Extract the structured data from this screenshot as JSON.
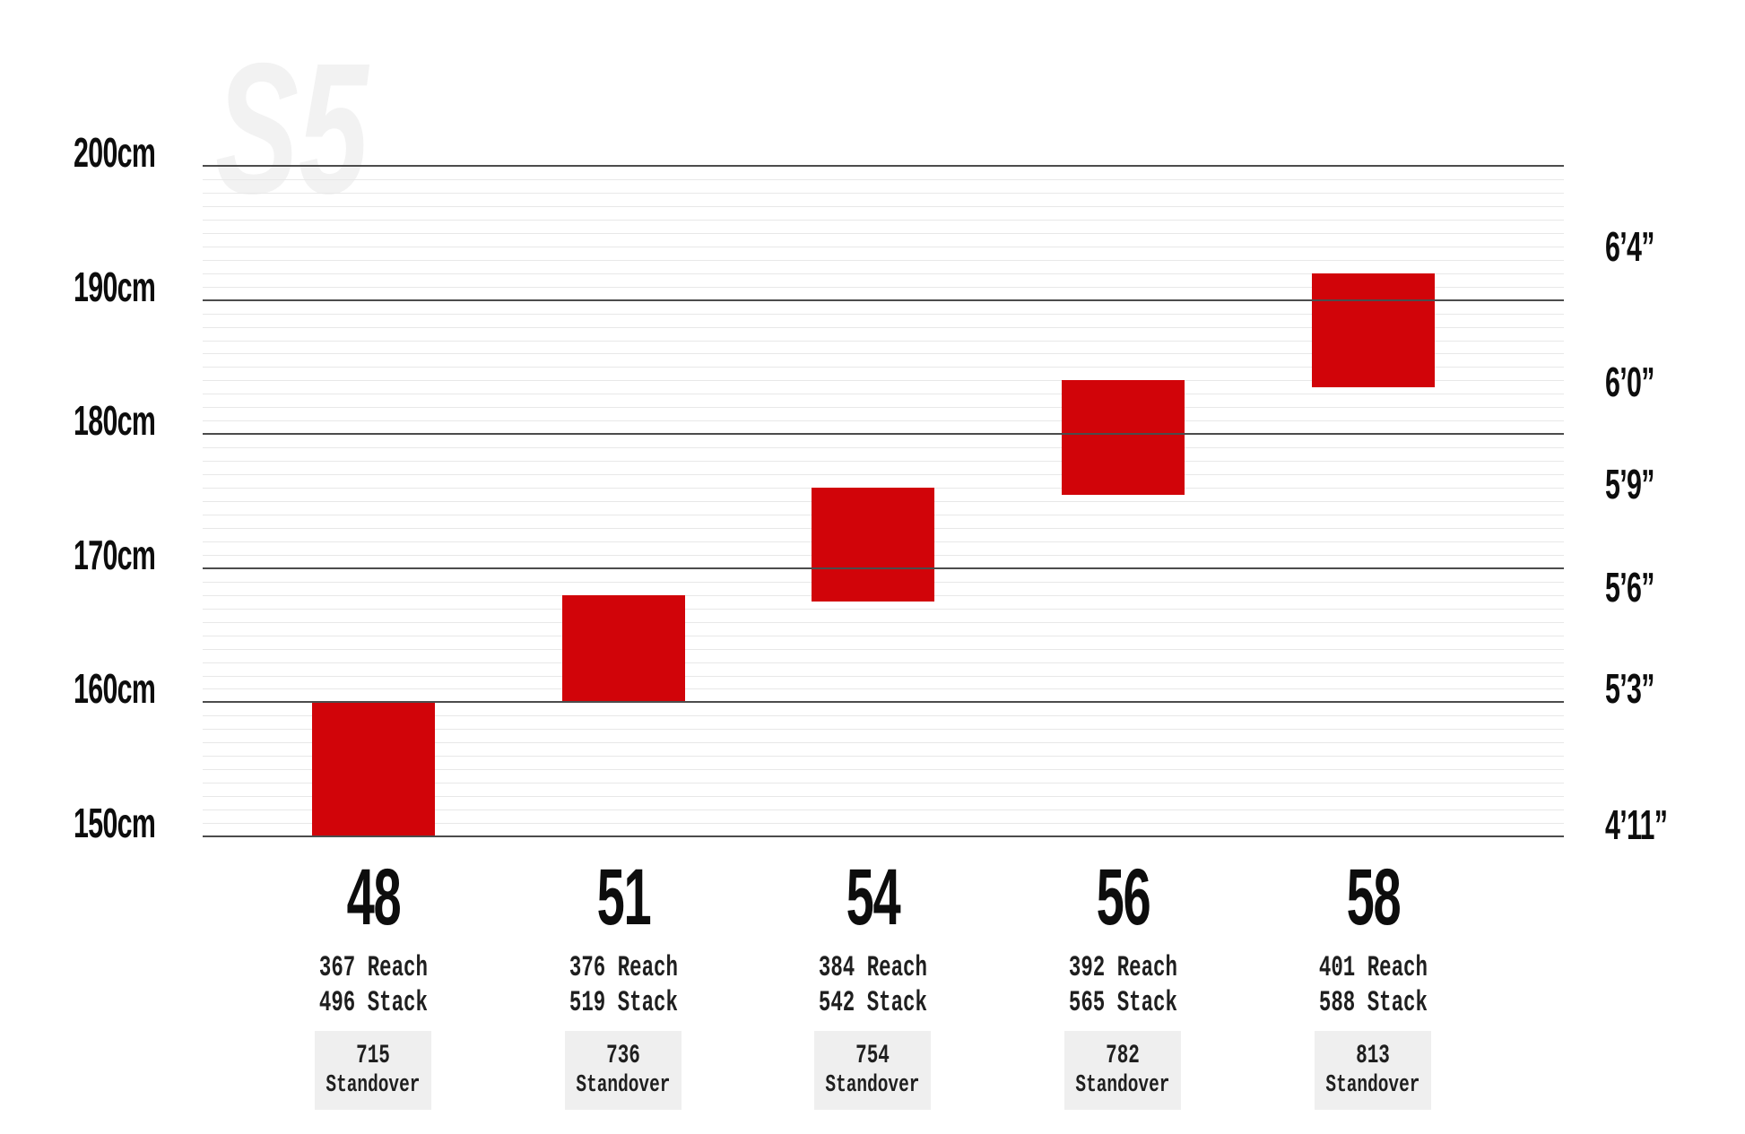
{
  "watermark": "S5",
  "chart_data": {
    "type": "bar",
    "subtype": "rider-height-range-blocks",
    "title": "",
    "bar_color": "#d10409",
    "ylim_cm": [
      150,
      200
    ],
    "grid": {
      "minor_step_cm": 1,
      "major_step_cm": 10,
      "minor_color": "#e8e8e8",
      "major_color": "#4c4c4c"
    },
    "left_axis": {
      "unit": "cm",
      "ticks": [
        {
          "label": "200cm",
          "cm": 200
        },
        {
          "label": "190cm",
          "cm": 190
        },
        {
          "label": "180cm",
          "cm": 180
        },
        {
          "label": "170cm",
          "cm": 170
        },
        {
          "label": "160cm",
          "cm": 160
        },
        {
          "label": "150cm",
          "cm": 150
        }
      ]
    },
    "right_axis": {
      "unit": "feet-inches",
      "ticks": [
        {
          "label": "6’4”",
          "cm": 193.0
        },
        {
          "label": "6’0”",
          "cm": 182.9
        },
        {
          "label": "5’9”",
          "cm": 175.3
        },
        {
          "label": "5’6”",
          "cm": 167.6
        },
        {
          "label": "5’3”",
          "cm": 160.0
        },
        {
          "label": "4’11”",
          "cm": 149.9
        }
      ]
    },
    "series": [
      {
        "size": "48",
        "height_range_cm": [
          150.0,
          160.0
        ],
        "reach_label": "367 Reach",
        "stack_label": "496 Stack",
        "standover_value": "715",
        "standover_label": "Standover"
      },
      {
        "size": "51",
        "height_range_cm": [
          160.0,
          168.0
        ],
        "reach_label": "376 Reach",
        "stack_label": "519 Stack",
        "standover_value": "736",
        "standover_label": "Standover"
      },
      {
        "size": "54",
        "height_range_cm": [
          167.5,
          176.0
        ],
        "reach_label": "384 Reach",
        "stack_label": "542 Stack",
        "standover_value": "754",
        "standover_label": "Standover"
      },
      {
        "size": "56",
        "height_range_cm": [
          175.5,
          184.0
        ],
        "reach_label": "392 Reach",
        "stack_label": "565 Stack",
        "standover_value": "782",
        "standover_label": "Standover"
      },
      {
        "size": "58",
        "height_range_cm": [
          183.5,
          192.0
        ],
        "reach_label": "401 Reach",
        "stack_label": "588 Stack",
        "standover_value": "813",
        "standover_label": "Standover"
      }
    ]
  }
}
